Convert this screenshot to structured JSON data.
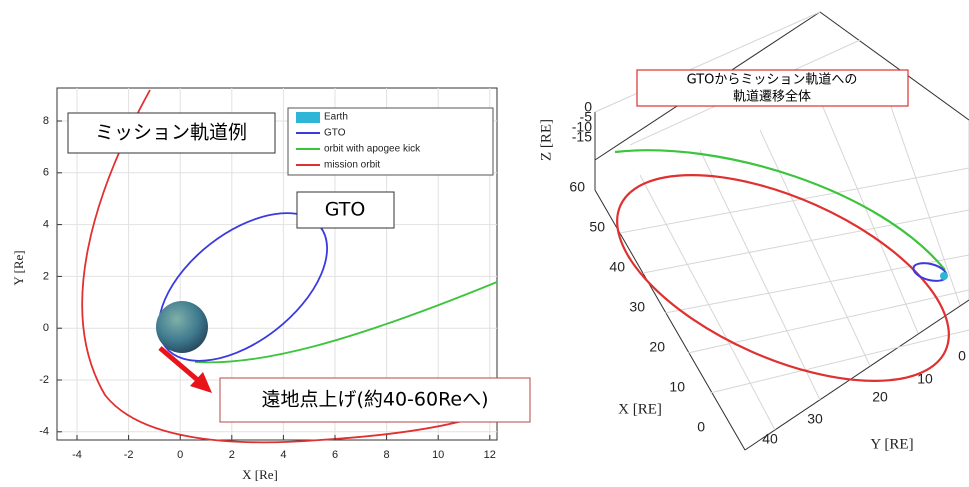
{
  "left_plot": {
    "x_ticks": [
      "-4",
      "-2",
      "0",
      "2",
      "4",
      "6",
      "8",
      "10",
      "12"
    ],
    "y_ticks": [
      "8",
      "6",
      "4",
      "2",
      "0",
      "-2",
      "-4"
    ],
    "x_label": "X [Re]",
    "y_label": "Y [Re]",
    "legend": [
      "Earth",
      "GTO",
      "orbit with apogee kick",
      "mission orbit"
    ],
    "title_box": "ミッション軌道例",
    "gto_label": "GTO",
    "arrow_label": "遠地点上げ(約40-60Reへ)"
  },
  "right_plot": {
    "callout": [
      "GTOからミッション軌道への",
      "軌道遷移全体"
    ],
    "z_ticks": [
      "0",
      "-5",
      "-10",
      "-15"
    ],
    "x_ticks": [
      "60",
      "50",
      "40",
      "30",
      "20",
      "10",
      "0"
    ],
    "y_ticks": [
      "40",
      "30",
      "20",
      "10",
      "0"
    ],
    "z_label": "Z [RE]",
    "x_label": "X [RE]",
    "y_label": "Y [RE]"
  }
}
